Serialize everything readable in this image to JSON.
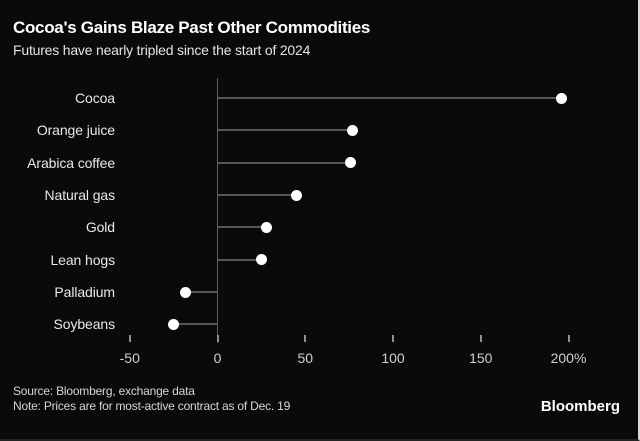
{
  "header": {
    "title": "Cocoa's Gains Blaze Past Other Commodities",
    "subtitle": "Futures have nearly tripled since the start of 2024"
  },
  "chart_data": {
    "type": "scatter",
    "variant": "horizontal-lollipop",
    "title": "Cocoa's Gains Blaze Past Other Commodities",
    "subtitle": "Futures have nearly tripled since the start of 2024",
    "categories": [
      "Cocoa",
      "Orange juice",
      "Arabica coffee",
      "Natural gas",
      "Gold",
      "Lean hogs",
      "Palladium",
      "Soybeans"
    ],
    "values": [
      196,
      77,
      76,
      45,
      28,
      25,
      -18,
      -25
    ],
    "unit": "%",
    "baseline": 0,
    "x_ticks": [
      -50,
      0,
      50,
      100,
      150,
      200
    ],
    "x_tick_labels": [
      "-50",
      "0",
      "50",
      "100",
      "150",
      "200%"
    ],
    "xlim": [
      -50,
      210
    ],
    "ylabel": "",
    "xlabel": "",
    "grid": false,
    "legend": false
  },
  "footer": {
    "source": "Source: Bloomberg, exchange data",
    "note": "Note: Prices are for most-active contract as of Dec. 19",
    "brand": "Bloomberg"
  },
  "colors": {
    "background": "#0a0a0a",
    "title": "#ffffff",
    "subtitle": "#e3e3e3",
    "category_label": "#e8e8e8",
    "dot": "#ffffff",
    "stem": "#565656",
    "axis": "#5c5c5c",
    "tick": "#8f8f8f",
    "tick_label": "#cfcfcf",
    "footer_text": "#d6d6d6",
    "brand": "#ffffff",
    "edge_right": "#d8d8d8",
    "edge_bottom": "#232323"
  }
}
